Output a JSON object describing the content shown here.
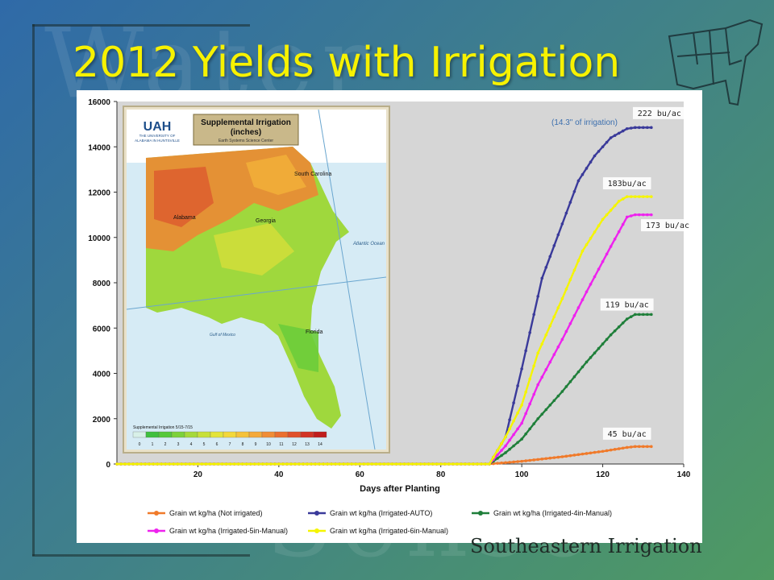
{
  "slide": {
    "title": "2012 Yields with Irrigation",
    "footer": "Southeastern Irrigation",
    "colors": {
      "title": "#f7f200",
      "background_start": "#2f6aa8",
      "background_end": "#4f9a62"
    }
  },
  "inset_map": {
    "title": "Supplemental Irrigation",
    "units": "(inches)",
    "subtitle": "Earth Systems Science Center",
    "logo_line1": "THE UNIVERSITY OF",
    "logo_line2": "ALABAMA IN HUNTSVILLE",
    "logo_text": "UAH",
    "labels": {
      "alabama": "Alabama",
      "georgia": "Georgia",
      "south_carolina": "South Carolina",
      "florida": "Florida",
      "atlantic": "Atlantic Ocean",
      "gulf": "Gulf of Mexico"
    },
    "legend_title": "Supplemental Irrigation 5/15-7/15",
    "scale_ticks": [
      "0",
      "1",
      "2",
      "3",
      "4",
      "5",
      "6",
      "7",
      "8",
      "9",
      "10",
      "11",
      "12",
      "13",
      "14"
    ],
    "scale_colors": [
      "#d8f0e8",
      "#3fbf3f",
      "#55c83a",
      "#7cd13a",
      "#a5d93a",
      "#c7e03a",
      "#e3e43a",
      "#f3d83a",
      "#f5c23a",
      "#f4a93a",
      "#f08d36",
      "#ea6f2f",
      "#e0502a",
      "#d23325",
      "#c01d1d"
    ]
  },
  "chart_data": {
    "type": "line",
    "xlabel": "Days after Planting",
    "ylabel": "",
    "xlim": [
      0,
      140
    ],
    "ylim": [
      0,
      16000
    ],
    "xticks": [
      20,
      40,
      60,
      80,
      100,
      120,
      140
    ],
    "yticks": [
      0,
      2000,
      4000,
      6000,
      8000,
      10000,
      12000,
      14000,
      16000
    ],
    "grid": false,
    "legend_position": "bottom",
    "series": [
      {
        "name": "Grain wt kg/ha (Not irrigated)",
        "color": "#f07a2a",
        "points": [
          [
            0,
            0
          ],
          [
            92,
            0
          ],
          [
            100,
            120
          ],
          [
            110,
            320
          ],
          [
            120,
            560
          ],
          [
            126,
            730
          ],
          [
            128,
            770
          ],
          [
            132,
            770
          ]
        ]
      },
      {
        "name": "Grain wt kg/ha (Irrigated-AUTO)",
        "color": "#3a3a9a",
        "points": [
          [
            0,
            0
          ],
          [
            92,
            0
          ],
          [
            96,
            1200
          ],
          [
            100,
            4200
          ],
          [
            105,
            8200
          ],
          [
            110,
            10600
          ],
          [
            114,
            12500
          ],
          [
            118,
            13600
          ],
          [
            122,
            14400
          ],
          [
            126,
            14800
          ],
          [
            128,
            14850
          ],
          [
            132,
            14850
          ]
        ]
      },
      {
        "name": "Grain wt kg/ha (Irrigated-4in-Manual)",
        "color": "#1f7f3a",
        "points": [
          [
            0,
            0
          ],
          [
            92,
            0
          ],
          [
            96,
            500
          ],
          [
            100,
            1100
          ],
          [
            104,
            2000
          ],
          [
            110,
            3200
          ],
          [
            116,
            4500
          ],
          [
            122,
            5700
          ],
          [
            126,
            6400
          ],
          [
            128,
            6600
          ],
          [
            132,
            6600
          ]
        ]
      },
      {
        "name": "Grain wt kg/ha (Irrigated-5in-Manual)",
        "color": "#ee22ee",
        "points": [
          [
            0,
            0
          ],
          [
            92,
            0
          ],
          [
            96,
            800
          ],
          [
            100,
            1800
          ],
          [
            104,
            3500
          ],
          [
            110,
            5500
          ],
          [
            116,
            7600
          ],
          [
            122,
            9600
          ],
          [
            126,
            10900
          ],
          [
            128,
            11000
          ],
          [
            132,
            11000
          ]
        ]
      },
      {
        "name": "Grain wt kg/ha (Irrigated-6in-Manual)",
        "color": "#f5f500",
        "points": [
          [
            0,
            0
          ],
          [
            92,
            0
          ],
          [
            96,
            1200
          ],
          [
            100,
            2600
          ],
          [
            104,
            4900
          ],
          [
            110,
            7300
          ],
          [
            115,
            9400
          ],
          [
            120,
            10800
          ],
          [
            124,
            11600
          ],
          [
            126,
            11800
          ],
          [
            128,
            11800
          ],
          [
            132,
            11800
          ]
        ]
      }
    ],
    "annotations": [
      {
        "text": "222 bu/ac",
        "x": 134,
        "y": 15400
      },
      {
        "text": "183bu/ac",
        "x": 126,
        "y": 12300
      },
      {
        "text": "173 bu/ac",
        "x": 136,
        "y": 10450
      },
      {
        "text": "119 bu/ac",
        "x": 126,
        "y": 6950
      },
      {
        "text": "45 bu/ac",
        "x": 126,
        "y": 1250
      }
    ],
    "note": "(14.3\" of irrigation)"
  }
}
